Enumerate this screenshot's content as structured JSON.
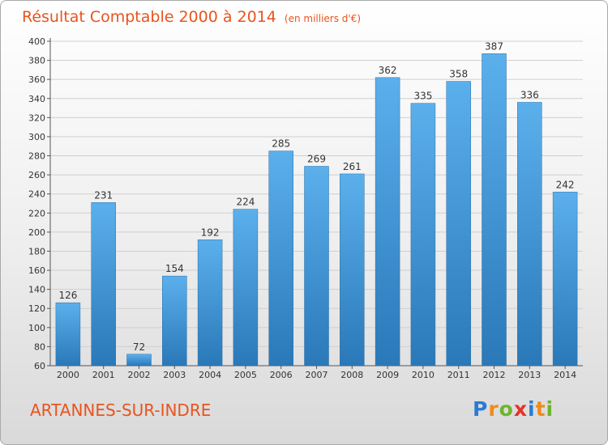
{
  "header": {
    "title": "Résultat Comptable 2000 à 2014",
    "subtitle": "(en milliers d'€)"
  },
  "footer": {
    "city": "ARTANNES-SUR-INDRE",
    "logo_letters": [
      {
        "ch": "P",
        "color": "#2b7bd5"
      },
      {
        "ch": "r",
        "color": "#f08a1c"
      },
      {
        "ch": "o",
        "color": "#6cb52d"
      },
      {
        "ch": "x",
        "color": "#e2332b"
      },
      {
        "ch": "i",
        "color": "#2b7bd5"
      },
      {
        "ch": "t",
        "color": "#f08a1c"
      },
      {
        "ch": "i",
        "color": "#6cb52d"
      }
    ]
  },
  "colors": {
    "bar_light": "#5bb0ec",
    "bar_dark": "#2a78b8",
    "accent": "#e8541e"
  },
  "chart_data": {
    "type": "bar",
    "categories": [
      "2000",
      "2001",
      "2002",
      "2003",
      "2004",
      "2005",
      "2006",
      "2007",
      "2008",
      "2009",
      "2010",
      "2011",
      "2012",
      "2013",
      "2014"
    ],
    "values": [
      126,
      231,
      72,
      154,
      192,
      224,
      285,
      269,
      261,
      362,
      335,
      358,
      387,
      336,
      242
    ],
    "yticks": [
      60,
      80,
      100,
      120,
      140,
      160,
      180,
      200,
      220,
      240,
      260,
      280,
      300,
      320,
      340,
      360,
      380,
      400
    ],
    "ylim": [
      60,
      400
    ],
    "grid": true
  }
}
